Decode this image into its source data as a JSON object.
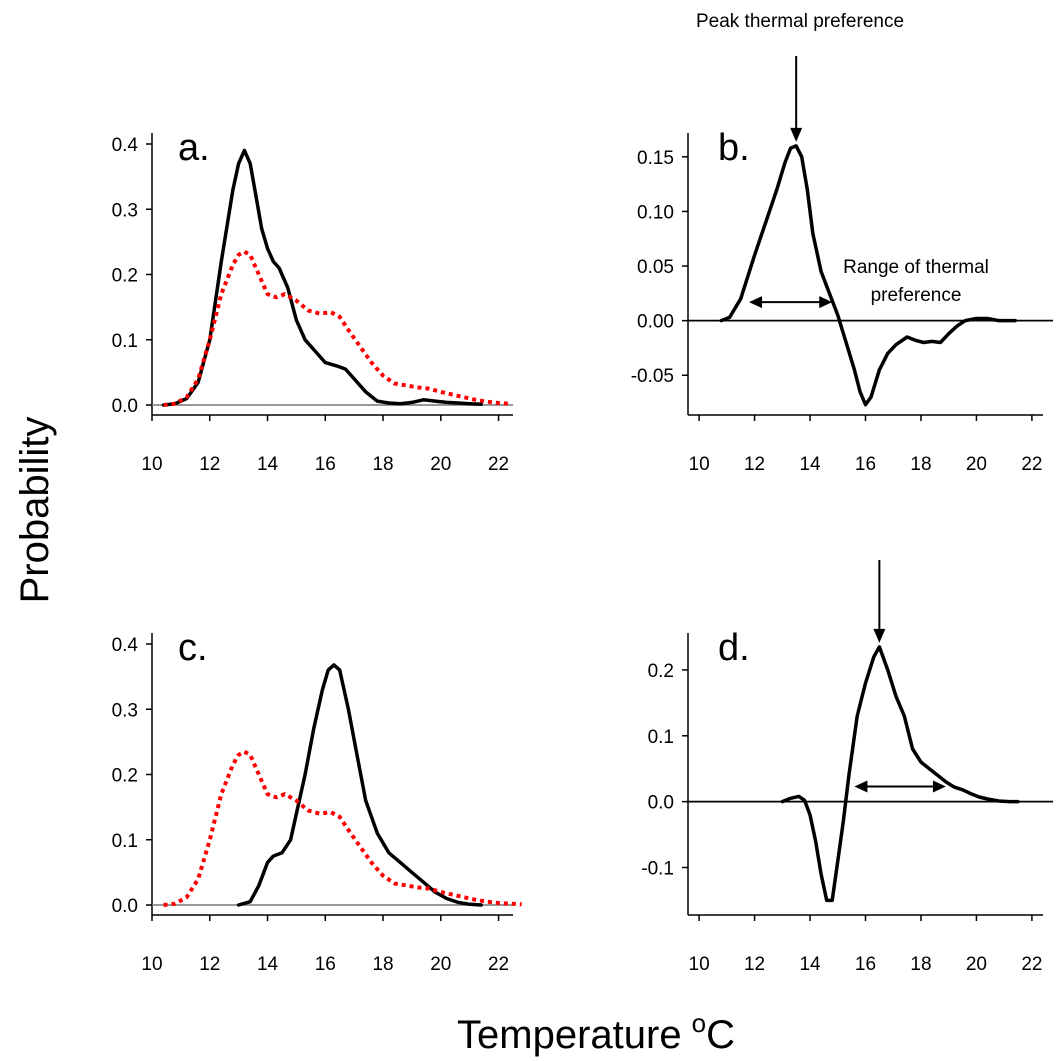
{
  "figure": {
    "ylabel": "Probability",
    "xlabel": "Temperature",
    "xlabel_sup": "o",
    "xlabel_unit": "C",
    "peak_annotation": "Peak thermal preference",
    "range_annotation_line1": "Range of thermal",
    "range_annotation_line2": "preference"
  },
  "chart_data": [
    {
      "panel": "a.",
      "type": "line",
      "xlim": [
        10,
        22.5
      ],
      "ylim": [
        0,
        0.4
      ],
      "xticks": [
        10,
        12,
        14,
        16,
        18,
        20,
        22
      ],
      "yticks": [
        "0.0",
        "0.1",
        "0.2",
        "0.3",
        "0.4"
      ],
      "ytick_values": [
        0,
        0.1,
        0.2,
        0.3,
        0.4
      ],
      "baseline": 0,
      "series": [
        {
          "color": "#000000",
          "style": "solid",
          "x": [
            10.4,
            10.8,
            11.2,
            11.6,
            12.0,
            12.4,
            12.8,
            13.0,
            13.2,
            13.4,
            13.6,
            13.8,
            14.0,
            14.2,
            14.4,
            14.7,
            15.0,
            15.3,
            15.6,
            16.0,
            16.4,
            16.7,
            17.0,
            17.4,
            17.8,
            18.2,
            18.6,
            19.0,
            19.4,
            19.8,
            20.2,
            20.6,
            21.0,
            21.4
          ],
          "y": [
            0.0,
            0.002,
            0.01,
            0.035,
            0.1,
            0.22,
            0.33,
            0.37,
            0.39,
            0.37,
            0.32,
            0.27,
            0.24,
            0.22,
            0.21,
            0.18,
            0.13,
            0.1,
            0.085,
            0.065,
            0.06,
            0.055,
            0.04,
            0.02,
            0.006,
            0.003,
            0.002,
            0.004,
            0.008,
            0.006,
            0.004,
            0.003,
            0.002,
            0.001
          ]
        },
        {
          "color": "#ff0000",
          "style": "dotted",
          "x": [
            10.4,
            10.8,
            11.2,
            11.6,
            12.0,
            12.4,
            12.8,
            13.0,
            13.2,
            13.4,
            13.6,
            13.8,
            14.0,
            14.3,
            14.6,
            15.0,
            15.4,
            15.8,
            16.2,
            16.5,
            16.8,
            17.2,
            17.6,
            18.0,
            18.4,
            18.8,
            19.2,
            19.6,
            20.0,
            20.4,
            20.8,
            21.2,
            21.6,
            22.0,
            22.4
          ],
          "y": [
            0.0,
            0.002,
            0.012,
            0.04,
            0.1,
            0.17,
            0.215,
            0.23,
            0.235,
            0.23,
            0.21,
            0.19,
            0.17,
            0.165,
            0.17,
            0.16,
            0.145,
            0.14,
            0.142,
            0.135,
            0.115,
            0.09,
            0.065,
            0.045,
            0.033,
            0.03,
            0.027,
            0.025,
            0.02,
            0.016,
            0.012,
            0.008,
            0.005,
            0.003,
            0.002
          ]
        }
      ]
    },
    {
      "panel": "b.",
      "type": "line",
      "xlim": [
        9.6,
        22.4
      ],
      "ylim": [
        -0.08,
        0.17
      ],
      "xticks": [
        10,
        12,
        14,
        16,
        18,
        20,
        22
      ],
      "yticks": [
        "-0.05",
        "0.00",
        "0.05",
        "0.10",
        "0.15"
      ],
      "ytick_values": [
        -0.05,
        0,
        0.05,
        0.1,
        0.15
      ],
      "baseline": 0,
      "series": [
        {
          "color": "#000000",
          "style": "solid",
          "x": [
            10.8,
            11.1,
            11.5,
            12.0,
            12.4,
            12.8,
            13.1,
            13.3,
            13.5,
            13.7,
            13.9,
            14.1,
            14.4,
            14.7,
            15.0,
            15.3,
            15.6,
            15.8,
            16.0,
            16.2,
            16.5,
            16.8,
            17.1,
            17.5,
            17.8,
            18.1,
            18.4,
            18.7,
            19.0,
            19.3,
            19.6,
            20.0,
            20.4,
            20.8,
            21.4
          ],
          "y": [
            0.0,
            0.003,
            0.02,
            0.06,
            0.09,
            0.12,
            0.145,
            0.158,
            0.16,
            0.15,
            0.12,
            0.08,
            0.045,
            0.025,
            0.005,
            -0.02,
            -0.045,
            -0.065,
            -0.077,
            -0.07,
            -0.045,
            -0.03,
            -0.022,
            -0.015,
            -0.018,
            -0.02,
            -0.019,
            -0.02,
            -0.012,
            -0.005,
            0.0,
            0.002,
            0.002,
            0.0,
            0.0
          ]
        }
      ],
      "annotations": {
        "peak_x": 13.5,
        "range_x": [
          11.8,
          14.8
        ],
        "range_y": 0.017
      }
    },
    {
      "panel": "c.",
      "type": "line",
      "xlim": [
        10,
        22.5
      ],
      "ylim": [
        0,
        0.4
      ],
      "xticks": [
        10,
        12,
        14,
        16,
        18,
        20,
        22
      ],
      "yticks": [
        "0.0",
        "0.1",
        "0.2",
        "0.3",
        "0.4"
      ],
      "ytick_values": [
        0,
        0.1,
        0.2,
        0.3,
        0.4
      ],
      "baseline": 0,
      "series": [
        {
          "color": "#000000",
          "style": "solid",
          "x": [
            13.0,
            13.4,
            13.7,
            14.0,
            14.2,
            14.5,
            14.8,
            15.0,
            15.3,
            15.6,
            15.9,
            16.1,
            16.3,
            16.5,
            16.8,
            17.1,
            17.4,
            17.8,
            18.2,
            18.6,
            19.0,
            19.4,
            19.8,
            20.2,
            20.6,
            21.0,
            21.4
          ],
          "y": [
            0.0,
            0.005,
            0.03,
            0.065,
            0.075,
            0.08,
            0.1,
            0.14,
            0.2,
            0.27,
            0.33,
            0.36,
            0.368,
            0.36,
            0.3,
            0.23,
            0.16,
            0.11,
            0.08,
            0.065,
            0.05,
            0.035,
            0.02,
            0.01,
            0.004,
            0.001,
            0.0
          ]
        },
        {
          "color": "#ff0000",
          "style": "dotted",
          "x": [
            10.4,
            10.8,
            11.2,
            11.6,
            12.0,
            12.4,
            12.8,
            13.0,
            13.2,
            13.4,
            13.6,
            13.8,
            14.0,
            14.3,
            14.6,
            15.0,
            15.4,
            15.8,
            16.2,
            16.5,
            16.8,
            17.2,
            17.6,
            18.0,
            18.4,
            18.8,
            19.2,
            19.6,
            20.0,
            20.4,
            20.8,
            21.2,
            21.6,
            22.0,
            22.4,
            22.8
          ],
          "y": [
            0.0,
            0.002,
            0.012,
            0.04,
            0.1,
            0.17,
            0.215,
            0.23,
            0.235,
            0.23,
            0.21,
            0.19,
            0.17,
            0.165,
            0.17,
            0.16,
            0.145,
            0.14,
            0.142,
            0.135,
            0.115,
            0.09,
            0.065,
            0.045,
            0.033,
            0.03,
            0.027,
            0.025,
            0.02,
            0.016,
            0.012,
            0.008,
            0.005,
            0.003,
            0.002,
            0.001
          ]
        }
      ]
    },
    {
      "panel": "d.",
      "type": "line",
      "xlim": [
        9.6,
        22.4
      ],
      "ylim": [
        -0.16,
        0.25
      ],
      "xticks": [
        10,
        12,
        14,
        16,
        18,
        20,
        22
      ],
      "yticks": [
        "-0.1",
        "0.0",
        "0.1",
        "0.2"
      ],
      "ytick_values": [
        -0.1,
        0,
        0.1,
        0.2
      ],
      "baseline": 0,
      "series": [
        {
          "color": "#000000",
          "style": "solid",
          "x": [
            13.0,
            13.3,
            13.6,
            13.8,
            14.0,
            14.2,
            14.4,
            14.6,
            14.8,
            15.0,
            15.2,
            15.4,
            15.7,
            16.0,
            16.3,
            16.5,
            16.8,
            17.1,
            17.4,
            17.7,
            18.0,
            18.3,
            18.6,
            18.9,
            19.2,
            19.5,
            19.8,
            20.1,
            20.4,
            20.8,
            21.2,
            21.5
          ],
          "y": [
            0.0,
            0.005,
            0.008,
            0.002,
            -0.02,
            -0.06,
            -0.11,
            -0.15,
            -0.15,
            -0.09,
            -0.03,
            0.04,
            0.13,
            0.18,
            0.22,
            0.235,
            0.2,
            0.16,
            0.13,
            0.08,
            0.06,
            0.05,
            0.04,
            0.03,
            0.022,
            0.018,
            0.012,
            0.007,
            0.004,
            0.001,
            0.0,
            0.0
          ]
        }
      ],
      "annotations": {
        "peak_x": 16.5,
        "range_x": [
          15.6,
          18.9
        ],
        "range_y": 0.023
      }
    }
  ]
}
